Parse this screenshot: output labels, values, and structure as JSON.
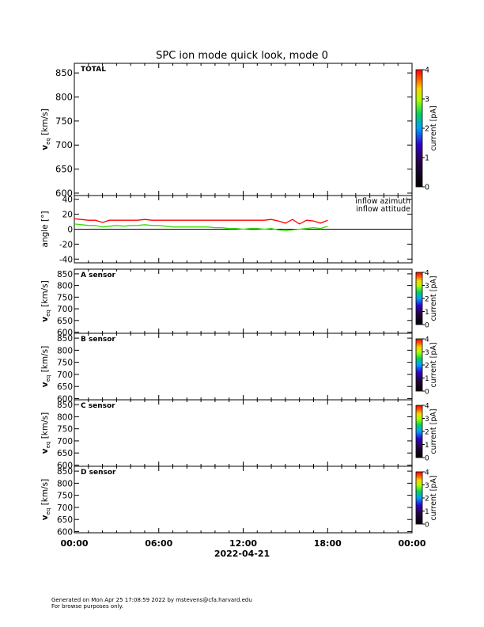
{
  "title": "SPC ion mode quick look, mode 0",
  "footer": {
    "line1": "Generated on Mon Apr 25 17:08:59 2022 by mstevens@cfa.harvard.edu",
    "line2": "For browse purposes only."
  },
  "colorbar_label": "current [pA]",
  "x_axis": {
    "date_label": "2022-04-21",
    "ticks": [
      "00:00",
      "06:00",
      "12:00",
      "18:00",
      "00:00"
    ]
  },
  "chart_data": [
    {
      "type": "heatmap",
      "panel": "total",
      "panel_label": "TOTAL",
      "ylabel": "v_eq [km/s]",
      "ylim": [
        595,
        870
      ],
      "yticks": [
        600,
        650,
        700,
        750,
        800,
        850
      ],
      "xlim_hours": [
        0,
        24
      ],
      "colorbar": {
        "ticks": [
          0,
          1,
          2,
          3,
          4
        ],
        "label": "current [pA]"
      },
      "values": []
    },
    {
      "type": "line",
      "panel": "angle",
      "ylabel": "angle [°]",
      "ylim": [
        -45,
        45
      ],
      "yticks": [
        -40,
        -20,
        0,
        20,
        40
      ],
      "xlim_hours": [
        0,
        24
      ],
      "zero_line": true,
      "series": [
        {
          "name": "inflow azimuth",
          "color": "#ff0000",
          "x_hours": [
            0,
            0.5,
            1,
            1.5,
            2,
            2.5,
            3,
            3.5,
            4,
            4.5,
            5,
            5.5,
            6,
            6.5,
            7,
            7.5,
            8,
            8.5,
            9,
            9.5,
            10,
            10.5,
            11,
            11.5,
            12,
            12.5,
            13,
            13.5,
            14,
            14.5,
            15,
            15.5,
            16,
            16.5,
            17,
            17.5,
            18
          ],
          "values": [
            14,
            13,
            12,
            12,
            9,
            12,
            12,
            12,
            12,
            12,
            13,
            12,
            12,
            12,
            12,
            12,
            12,
            12,
            12,
            12,
            12,
            12,
            12,
            12,
            12,
            12,
            12,
            12,
            13,
            11,
            8,
            13,
            7,
            12,
            11,
            8,
            12
          ]
        },
        {
          "name": "inflow attitude",
          "color": "#33dd00",
          "x_hours": [
            0,
            0.5,
            1,
            1.5,
            2,
            2.5,
            3,
            3.5,
            4,
            4.5,
            5,
            5.5,
            6,
            6.5,
            7,
            7.5,
            8,
            8.5,
            9,
            9.5,
            10,
            10.5,
            11,
            11.5,
            12,
            12.5,
            13,
            13.5,
            14,
            14.5,
            15,
            15.5,
            16,
            16.5,
            17,
            17.5,
            18
          ],
          "values": [
            7,
            6,
            5,
            5,
            3,
            4,
            5,
            4,
            5,
            5,
            6,
            5,
            5,
            4,
            3,
            3,
            3,
            3,
            3,
            3,
            2,
            2,
            1,
            1,
            0,
            1,
            1,
            0,
            1,
            -1,
            -2,
            -1,
            0,
            1,
            2,
            1,
            4
          ]
        }
      ]
    },
    {
      "type": "heatmap",
      "panel": "sensor_a",
      "panel_label": "A sensor",
      "ylabel": "v_eq [km/s]",
      "ylim": [
        595,
        870
      ],
      "yticks": [
        600,
        650,
        700,
        750,
        800,
        850
      ],
      "xlim_hours": [
        0,
        24
      ],
      "colorbar": {
        "ticks": [
          0,
          1,
          2,
          3,
          4
        ],
        "label": "current [pA]"
      },
      "values": []
    },
    {
      "type": "heatmap",
      "panel": "sensor_b",
      "panel_label": "B sensor",
      "ylabel": "v_eq [km/s]",
      "ylim": [
        595,
        870
      ],
      "yticks": [
        600,
        650,
        700,
        750,
        800,
        850
      ],
      "xlim_hours": [
        0,
        24
      ],
      "colorbar": {
        "ticks": [
          0,
          1,
          2,
          3,
          4
        ],
        "label": "current [pA]"
      },
      "values": []
    },
    {
      "type": "heatmap",
      "panel": "sensor_c",
      "panel_label": "C sensor",
      "ylabel": "v_eq [km/s]",
      "ylim": [
        595,
        870
      ],
      "yticks": [
        600,
        650,
        700,
        750,
        800,
        850
      ],
      "xlim_hours": [
        0,
        24
      ],
      "colorbar": {
        "ticks": [
          0,
          1,
          2,
          3,
          4
        ],
        "label": "current [pA]"
      },
      "values": []
    },
    {
      "type": "heatmap",
      "panel": "sensor_d",
      "panel_label": "D sensor",
      "ylabel": "v_eq [km/s]",
      "ylim": [
        595,
        870
      ],
      "yticks": [
        600,
        650,
        700,
        750,
        800,
        850
      ],
      "xlim_hours": [
        0,
        24
      ],
      "colorbar": {
        "ticks": [
          0,
          1,
          2,
          3,
          4
        ],
        "label": "current [pA]"
      },
      "values": []
    }
  ]
}
